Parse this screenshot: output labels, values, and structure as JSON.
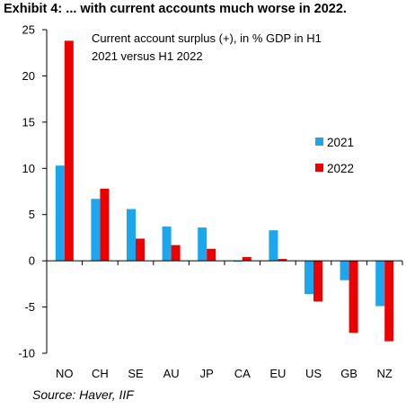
{
  "title": "Exhibit 4: ... with current accounts much worse in 2022.",
  "source": "Source: Haver, IIF",
  "colors": {
    "series_2021": "#1aa7ee",
    "series_2022": "#ee0000"
  },
  "chart_data": {
    "type": "bar",
    "subtitle_lines": [
      "Current account surplus (+), in % GDP in H1",
      "2021  versus H1 2022"
    ],
    "categories": [
      "NO",
      "CH",
      "SE",
      "AU",
      "JP",
      "CA",
      "EU",
      "US",
      "GB",
      "NZ"
    ],
    "series": [
      {
        "name": "2021",
        "values": [
          10.3,
          6.7,
          5.6,
          3.7,
          3.6,
          -0.1,
          3.3,
          -3.6,
          -2.1,
          -4.9
        ]
      },
      {
        "name": "2022",
        "values": [
          23.8,
          7.8,
          2.4,
          1.7,
          1.3,
          0.4,
          0.2,
          -4.4,
          -7.8,
          -8.7
        ]
      }
    ],
    "yticks": [
      "25",
      "20",
      "15",
      "10",
      "5",
      "0",
      "-5",
      "-10"
    ],
    "ytick_values": [
      25,
      20,
      15,
      10,
      5,
      0,
      -5,
      -10
    ],
    "ylim": [
      -10,
      25
    ],
    "xlabel": "",
    "ylabel": "",
    "grid": false,
    "legend_position": "right"
  }
}
